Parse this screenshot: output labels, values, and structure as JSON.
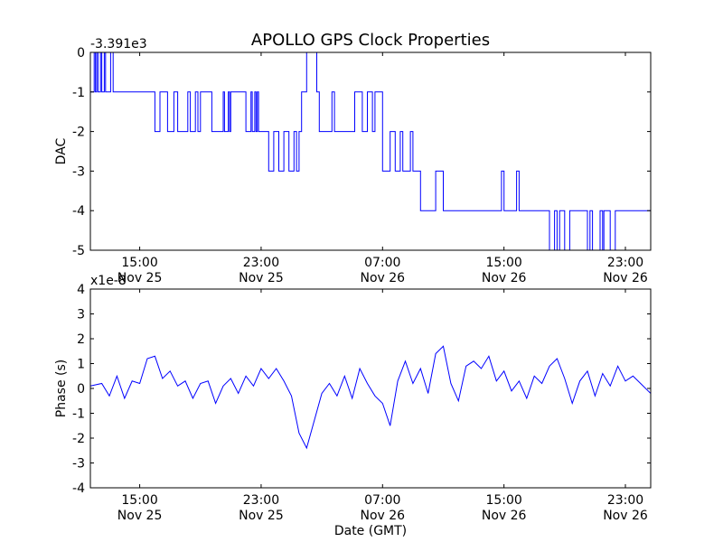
{
  "figure": {
    "title": "APOLLO GPS Clock Properties",
    "xlabel": "Date (GMT)",
    "line_color": "#0000ff",
    "axis_color": "#000000",
    "background": "#ffffff"
  },
  "chart_data": [
    {
      "type": "line",
      "title": "APOLLO GPS Clock Properties",
      "ylabel": "DAC",
      "offset_label": "-3.391e3",
      "xlabel": "",
      "xlim": [
        "2011-11-25 11:45",
        "2011-11-27 00:40"
      ],
      "ylim": [
        -5,
        0
      ],
      "yticks": [
        0,
        -1,
        -2,
        -3,
        -4,
        -5
      ],
      "ytick_labels": [
        "0",
        "-1",
        "-2",
        "-3",
        "-4",
        "-5"
      ],
      "xticks": [
        "2011-11-25 15:00",
        "2011-11-25 23:00",
        "2011-11-26 07:00",
        "2011-11-26 15:00",
        "2011-11-26 23:00"
      ],
      "xtick_labels": [
        {
          "time": "15:00",
          "date": "Nov 25"
        },
        {
          "time": "23:00",
          "date": "Nov 25"
        },
        {
          "time": "07:00",
          "date": "Nov 26"
        },
        {
          "time": "15:00",
          "date": "Nov 26"
        },
        {
          "time": "23:00",
          "date": "Nov 26"
        }
      ],
      "grid": false,
      "series": [
        {
          "color": "#0000ff",
          "step": true,
          "x": [
            "2011-11-25 11:45",
            "2011-11-25 12:00",
            "2011-11-25 12:05",
            "2011-11-25 12:10",
            "2011-11-25 12:15",
            "2011-11-25 12:25",
            "2011-11-25 12:30",
            "2011-11-25 12:40",
            "2011-11-25 12:45",
            "2011-11-25 13:05",
            "2011-11-25 13:15",
            "2011-11-25 15:00",
            "2011-11-25 16:00",
            "2011-11-25 16:20",
            "2011-11-25 16:50",
            "2011-11-25 17:15",
            "2011-11-25 17:30",
            "2011-11-25 18:10",
            "2011-11-25 18:20",
            "2011-11-25 18:40",
            "2011-11-25 18:50",
            "2011-11-25 19:00",
            "2011-11-25 19:45",
            "2011-11-25 20:30",
            "2011-11-25 20:35",
            "2011-11-25 20:50",
            "2011-11-25 20:55",
            "2011-11-25 21:00",
            "2011-11-25 22:00",
            "2011-11-25 22:20",
            "2011-11-25 22:25",
            "2011-11-25 22:35",
            "2011-11-25 22:40",
            "2011-11-25 22:45",
            "2011-11-25 22:50",
            "2011-11-25 23:00",
            "2011-11-25 23:30",
            "2011-11-25 23:50",
            "2011-11-26 00:10",
            "2011-11-26 00:30",
            "2011-11-26 00:50",
            "2011-11-26 01:10",
            "2011-11-26 01:20",
            "2011-11-26 01:30",
            "2011-11-26 01:40",
            "2011-11-26 02:00",
            "2011-11-26 02:40",
            "2011-11-26 02:50",
            "2011-11-26 03:40",
            "2011-11-26 03:50",
            "2011-11-26 04:00",
            "2011-11-26 05:10",
            "2011-11-26 05:40",
            "2011-11-26 06:00",
            "2011-11-26 06:20",
            "2011-11-26 06:30",
            "2011-11-26 07:00",
            "2011-11-26 07:30",
            "2011-11-26 07:50",
            "2011-11-26 08:10",
            "2011-11-26 08:20",
            "2011-11-26 08:50",
            "2011-11-26 09:00",
            "2011-11-26 09:20",
            "2011-11-26 09:30",
            "2011-11-26 10:30",
            "2011-11-26 11:00",
            "2011-11-26 11:40",
            "2011-11-26 12:10",
            "2011-11-26 14:50",
            "2011-11-26 15:00",
            "2011-11-26 15:50",
            "2011-11-26 16:00",
            "2011-11-26 17:50",
            "2011-11-26 18:00",
            "2011-11-26 18:20",
            "2011-11-26 18:30",
            "2011-11-26 18:40",
            "2011-11-26 19:00",
            "2011-11-26 19:20",
            "2011-11-26 20:20",
            "2011-11-26 20:30",
            "2011-11-26 20:40",
            "2011-11-26 20:50",
            "2011-11-26 21:20",
            "2011-11-26 21:30",
            "2011-11-26 21:35",
            "2011-11-26 22:00",
            "2011-11-26 22:20",
            "2011-11-26 22:40",
            "2011-11-26 23:00"
          ],
          "values": [
            -1,
            0,
            -1,
            0,
            -1,
            0,
            -1,
            0,
            -1,
            0,
            -1,
            -1,
            -2,
            -1,
            -2,
            -1,
            -2,
            -1,
            -2,
            -1,
            -2,
            -1,
            -2,
            -1,
            -2,
            -1,
            -2,
            -1,
            -2,
            -1,
            -2,
            -1,
            -2,
            -1,
            -2,
            -2,
            -3,
            -2,
            -3,
            -2,
            -3,
            -2,
            -3,
            -2,
            -1,
            0,
            -1,
            -2,
            -1,
            -2,
            -2,
            -1,
            -2,
            -1,
            -2,
            -1,
            -3,
            -2,
            -3,
            -2,
            -3,
            -2,
            -3,
            -3,
            -4,
            -3,
            -4,
            -4,
            -4,
            -3,
            -4,
            -3,
            -4,
            -4,
            -5,
            -4,
            -5,
            -4,
            -5,
            -4,
            -4,
            -5,
            -4,
            -5,
            -4,
            -5,
            -4,
            -5,
            -4,
            -4,
            -4
          ]
        }
      ]
    },
    {
      "type": "line",
      "title": "",
      "ylabel": "Phase (s)",
      "offset_label": "x1e-8",
      "xlabel": "Date (GMT)",
      "xlim": [
        "2011-11-25 11:45",
        "2011-11-27 00:40"
      ],
      "ylim": [
        -4,
        4
      ],
      "yticks": [
        4,
        3,
        2,
        1,
        0,
        -1,
        -2,
        -3,
        -4
      ],
      "ytick_labels": [
        "4",
        "3",
        "2",
        "1",
        "0",
        "-1",
        "-2",
        "-3",
        "-4"
      ],
      "xticks": [
        "2011-11-25 15:00",
        "2011-11-25 23:00",
        "2011-11-26 07:00",
        "2011-11-26 15:00",
        "2011-11-26 23:00"
      ],
      "xtick_labels": [
        {
          "time": "15:00",
          "date": "Nov 25"
        },
        {
          "time": "23:00",
          "date": "Nov 25"
        },
        {
          "time": "07:00",
          "date": "Nov 26"
        },
        {
          "time": "15:00",
          "date": "Nov 26"
        },
        {
          "time": "23:00",
          "date": "Nov 26"
        }
      ],
      "grid": false,
      "series": [
        {
          "color": "#0000ff",
          "step": false,
          "x": [
            "2011-11-25 11:45",
            "2011-11-25 12:30",
            "2011-11-25 13:00",
            "2011-11-25 13:30",
            "2011-11-25 14:00",
            "2011-11-25 14:30",
            "2011-11-25 15:00",
            "2011-11-25 15:30",
            "2011-11-25 16:00",
            "2011-11-25 16:30",
            "2011-11-25 17:00",
            "2011-11-25 17:30",
            "2011-11-25 18:00",
            "2011-11-25 18:30",
            "2011-11-25 19:00",
            "2011-11-25 19:30",
            "2011-11-25 20:00",
            "2011-11-25 20:30",
            "2011-11-25 21:00",
            "2011-11-25 21:30",
            "2011-11-25 22:00",
            "2011-11-25 22:30",
            "2011-11-25 23:00",
            "2011-11-25 23:30",
            "2011-11-26 00:00",
            "2011-11-26 00:30",
            "2011-11-26 01:00",
            "2011-11-26 01:30",
            "2011-11-26 02:00",
            "2011-11-26 02:30",
            "2011-11-26 03:00",
            "2011-11-26 03:30",
            "2011-11-26 04:00",
            "2011-11-26 04:30",
            "2011-11-26 05:00",
            "2011-11-26 05:30",
            "2011-11-26 06:00",
            "2011-11-26 06:30",
            "2011-11-26 07:00",
            "2011-11-26 07:30",
            "2011-11-26 08:00",
            "2011-11-26 08:30",
            "2011-11-26 09:00",
            "2011-11-26 09:30",
            "2011-11-26 10:00",
            "2011-11-26 10:30",
            "2011-11-26 11:00",
            "2011-11-26 11:30",
            "2011-11-26 12:00",
            "2011-11-26 12:30",
            "2011-11-26 13:00",
            "2011-11-26 13:30",
            "2011-11-26 14:00",
            "2011-11-26 14:30",
            "2011-11-26 15:00",
            "2011-11-26 15:30",
            "2011-11-26 16:00",
            "2011-11-26 16:30",
            "2011-11-26 17:00",
            "2011-11-26 17:30",
            "2011-11-26 18:00",
            "2011-11-26 18:30",
            "2011-11-26 19:00",
            "2011-11-26 19:30",
            "2011-11-26 20:00",
            "2011-11-26 20:30",
            "2011-11-26 21:00",
            "2011-11-26 21:30",
            "2011-11-26 22:00",
            "2011-11-26 22:30",
            "2011-11-26 23:00",
            "2011-11-26 23:30",
            "2011-11-27 00:00",
            "2011-11-27 00:30",
            "2011-11-27 00:40"
          ],
          "values": [
            0.1,
            0.2,
            -0.3,
            0.5,
            -0.4,
            0.3,
            0.2,
            1.2,
            1.3,
            0.4,
            0.7,
            0.1,
            0.3,
            -0.4,
            0.2,
            0.3,
            -0.6,
            0.1,
            0.4,
            -0.2,
            0.5,
            0.1,
            0.8,
            0.4,
            0.8,
            0.3,
            -0.3,
            -1.8,
            -2.4,
            -1.3,
            -0.2,
            0.2,
            -0.3,
            0.5,
            -0.4,
            0.8,
            0.2,
            -0.3,
            -0.6,
            -1.5,
            0.3,
            1.1,
            0.2,
            0.8,
            -0.2,
            1.4,
            1.7,
            0.2,
            -0.5,
            0.9,
            1.1,
            0.8,
            1.3,
            0.3,
            0.7,
            -0.1,
            0.3,
            -0.4,
            0.5,
            0.2,
            0.9,
            1.2,
            0.4,
            -0.6,
            0.3,
            0.7,
            -0.3,
            0.6,
            0.1,
            0.9,
            0.3,
            0.5,
            0.2,
            -0.1,
            -0.2
          ]
        }
      ]
    }
  ]
}
